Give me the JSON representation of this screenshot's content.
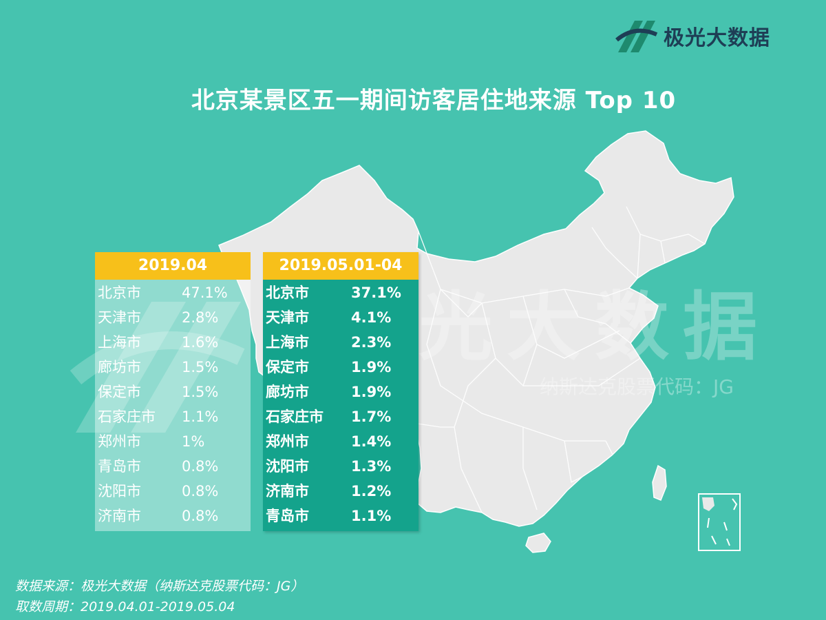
{
  "brand": {
    "name": "极光大数据"
  },
  "title": "北京某景区五一期间访客居住地来源 Top 10",
  "watermark": {
    "main": "极光大数据",
    "sub": "纳斯达克股票代码：JG"
  },
  "colors": {
    "background": "#46c3af",
    "header": "#f7c01a",
    "table2": "#14a38c",
    "map": "#e9e9e9"
  },
  "chart_data": [
    {
      "type": "table",
      "title": "2019.04",
      "rows": [
        {
          "city": "北京市",
          "value": "47.1%"
        },
        {
          "city": "天津市",
          "value": "2.8%"
        },
        {
          "city": "上海市",
          "value": "1.6%"
        },
        {
          "city": "廊坊市",
          "value": "1.5%"
        },
        {
          "city": "保定市",
          "value": "1.5%"
        },
        {
          "city": "石家庄市",
          "value": "1.1%"
        },
        {
          "city": "郑州市",
          "value": "1%"
        },
        {
          "city": "青岛市",
          "value": "0.8%"
        },
        {
          "city": "沈阳市",
          "value": "0.8%"
        },
        {
          "city": "济南市",
          "value": "0.8%"
        }
      ]
    },
    {
      "type": "table",
      "title": "2019.05.01-04",
      "rows": [
        {
          "city": "北京市",
          "value": "37.1%"
        },
        {
          "city": "天津市",
          "value": "4.1%"
        },
        {
          "city": "上海市",
          "value": "2.3%"
        },
        {
          "city": "保定市",
          "value": "1.9%"
        },
        {
          "city": "廊坊市",
          "value": "1.9%"
        },
        {
          "city": "石家庄市",
          "value": "1.7%"
        },
        {
          "city": "郑州市",
          "value": "1.4%"
        },
        {
          "city": "沈阳市",
          "value": "1.3%"
        },
        {
          "city": "济南市",
          "value": "1.2%"
        },
        {
          "city": "青岛市",
          "value": "1.1%"
        }
      ]
    }
  ],
  "footer": {
    "source": "数据来源：极光大数据（纳斯达克股票代码：JG）",
    "period": "取数周期：2019.04.01-2019.05.04"
  }
}
